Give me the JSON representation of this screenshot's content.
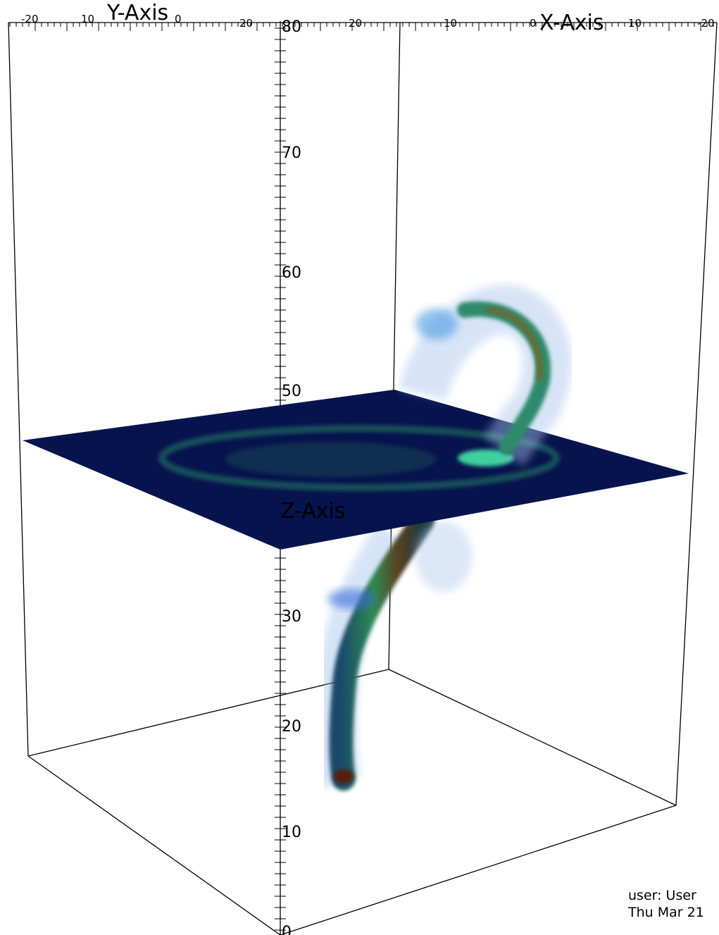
{
  "top_axis": {
    "y_axis_title": "Y-Axis",
    "x_axis_title": "X-Axis",
    "tick_labels": [
      "-20",
      "10",
      "0",
      "20",
      "20",
      "10",
      "0",
      "10",
      "-20"
    ]
  },
  "z_axis": {
    "title": "Z-Axis",
    "tick_labels": [
      "80",
      "70",
      "60",
      "50",
      "30",
      "20",
      "10",
      "0"
    ]
  },
  "footer": {
    "user": "user: User",
    "date": "Thu Mar 21"
  }
}
